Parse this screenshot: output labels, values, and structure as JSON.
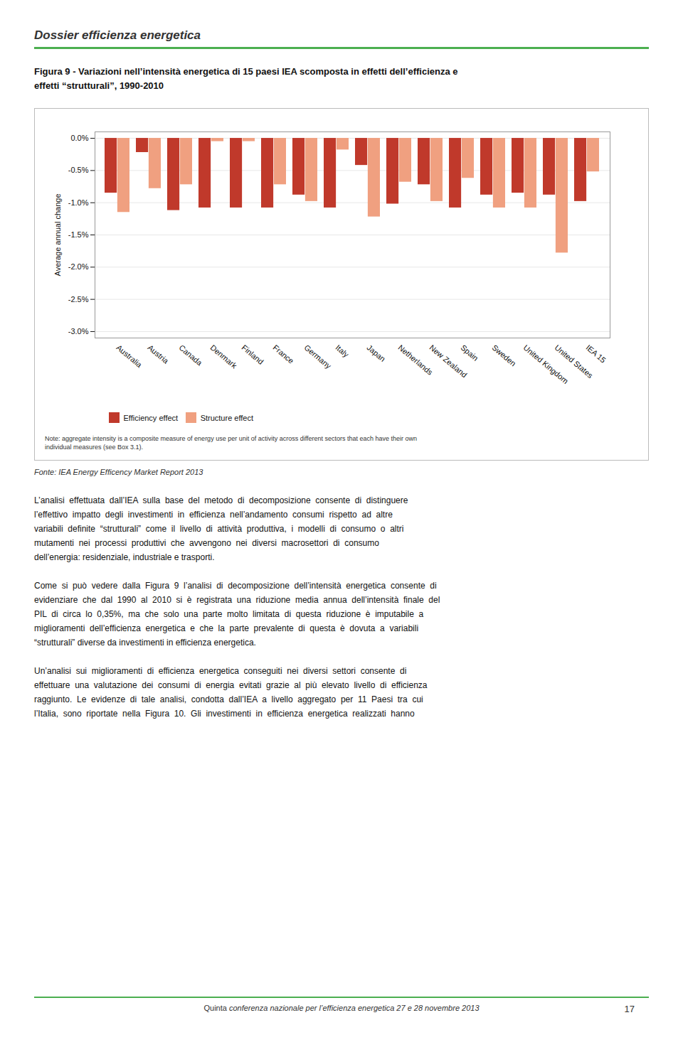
{
  "header_title": "Dossier efficienza energetica",
  "chart_data": {
    "type": "bar",
    "title": "Figura 9 - Variazioni nell’intensità energetica di 15 paesi IEA scomposta in effetti dell’efficienza e\neffetti “strutturali”, 1990-2010",
    "categories": [
      "Australia",
      "Austria",
      "Canada",
      "Denmark",
      "Finland",
      "France",
      "Germany",
      "Italy",
      "Japan",
      "Netherlands",
      "New Zealand",
      "Spain",
      "Sweden",
      "United Kingdom",
      "United States",
      "IEA 15"
    ],
    "series": [
      {
        "name": "Efficiency effect",
        "color": "#C0392B",
        "values": [
          -0.85,
          -0.22,
          -1.12,
          -1.08,
          -1.08,
          -1.08,
          -0.88,
          -1.08,
          -0.42,
          -1.02,
          -0.72,
          -1.08,
          -0.88,
          -0.85,
          -0.88,
          -0.98
        ]
      },
      {
        "name": "Structure effect",
        "color": "#F0A080",
        "values": [
          -1.15,
          -0.78,
          -0.72,
          -0.05,
          -0.05,
          -0.72,
          -0.98,
          -0.18,
          -1.22,
          -0.68,
          -0.98,
          -0.62,
          -1.08,
          -1.08,
          -1.78,
          -0.52
        ]
      }
    ],
    "ylabel": "Average annual change",
    "ylim": [
      -3.1,
      0.1
    ],
    "yticks": [
      {
        "value": 0.0,
        "label": "0.0%"
      },
      {
        "value": -0.5,
        "label": "-0.5%"
      },
      {
        "value": -1.0,
        "label": "-1.0%"
      },
      {
        "value": -1.5,
        "label": "-1.5%"
      },
      {
        "value": -2.0,
        "label": "-2.0%"
      },
      {
        "value": -2.5,
        "label": "-2.5%"
      },
      {
        "value": -3.0,
        "label": "-3.0%"
      }
    ],
    "grid": true,
    "legend": "bottom",
    "annotations": [
      "Note: aggregate intensity is a composite measure of energy use per unit of activity across different sectors that each have their own\nindividual measures (see Box 3.1)."
    ]
  },
  "source": "Fonte: IEA Energy Efficency Market Report 2013",
  "body_paragraphs": [
    [
      "L’analisi  effettuata  dall’IEA  sulla  base  del  metodo  di  decomposizione  consente  di  distinguere",
      "l’effettivo  impatto  degli  investimenti  in  efficienza  nell’andamento  consumi  rispetto  ad  altre",
      "variabili  definite  “strutturali”  come  il  livello  di  attività  produttiva,  i  modelli  di  consumo  o  altri",
      "mutamenti  nei  processi  produttivi  che  avvengono  nei  diversi  macrosettori  di  consumo",
      "dell’energia: residenziale, industriale e trasporti."
    ],
    [
      "Come  si  può  vedere  dalla  Figura  9  l’analisi  di  decomposizione  dell’intensità  energetica  consente  di",
      "evidenziare  che  dal  1990  al  2010  si  è  registrata  una  riduzione  media  annua  dell’intensità  finale  del",
      "PIL  di  circa  lo  0,35%,  ma  che  solo  una  parte  molto  limitata  di  questa  riduzione  è  imputabile  a",
      "miglioramenti  dell’efficienza  energetica  e  che  la  parte  prevalente  di  questa  è  dovuta  a  variabili",
      "“strutturali” diverse da investimenti in efficienza energetica."
    ],
    [
      "Un’analisi  sui  miglioramenti  di  efficienza  energetica  conseguiti  nei  diversi  settori  consente  di",
      "effettuare  una  valutazione  dei  consumi  di  energia  evitati  grazie  al  più  elevato  livello  di  efficienza",
      "raggiunto.  Le  evidenze  di  tale  analisi,  condotta  dall’IEA  a  livello  aggregato  per  11  Paesi  tra  cui",
      "l’Italia,  sono  riportate  nella  Figura  10.  Gli  investimenti  in  efficienza  energetica  realizzati  hanno"
    ]
  ],
  "footer_text_normal": "Quinta ",
  "footer_text_italic": "conferenza nazionale per l’efficienza energetica 27 e 28 novembre 2013",
  "page_number": "17"
}
